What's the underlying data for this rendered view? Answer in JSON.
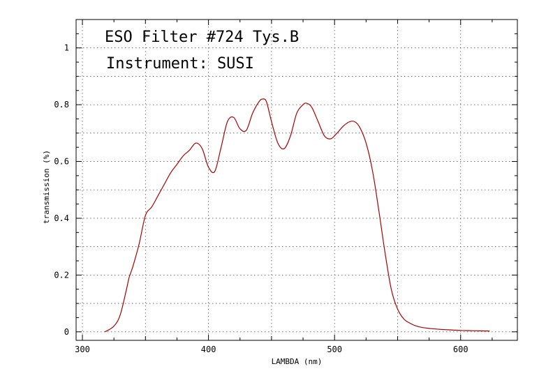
{
  "chart_data": {
    "type": "line",
    "title": "ESO Filter #724 Tys.B",
    "subtitle": "Instrument: SUSI",
    "xlabel": "LAMBDA (nm)",
    "ylabel": "transmission (%)",
    "xlim": [
      295,
      645
    ],
    "ylim": [
      -0.03,
      1.1
    ],
    "x_major_ticks": [
      300,
      400,
      500,
      600
    ],
    "x_minor_ticks": [
      350,
      450,
      550
    ],
    "y_major_ticks": [
      0,
      0.2,
      0.4,
      0.6,
      0.8,
      1
    ],
    "y_minor_ticks": [
      0.1,
      0.3,
      0.5,
      0.7,
      0.9
    ],
    "x_tick_labels": [
      "300",
      "400",
      "500",
      "600"
    ],
    "y_tick_labels": [
      "0",
      "0.2",
      "0.4",
      "0.6",
      "0.8",
      "1"
    ],
    "grid": true,
    "line_color": "#aa0000",
    "series": [
      {
        "x": [
          318,
          325,
          330,
          335,
          337,
          340,
          345,
          350,
          355,
          360,
          365,
          370,
          375,
          380,
          385,
          390,
          395,
          400,
          405,
          410,
          415,
          420,
          425,
          430,
          435,
          440,
          443,
          446,
          450,
          455,
          460,
          465,
          470,
          475,
          478,
          482,
          487,
          492,
          497,
          502,
          507,
          512,
          516,
          520,
          525,
          530,
          535,
          540,
          545,
          550,
          555,
          560,
          565,
          570,
          575,
          580,
          590,
          600,
          610,
          623
        ],
        "y": [
          0.0,
          0.02,
          0.06,
          0.15,
          0.19,
          0.23,
          0.31,
          0.41,
          0.44,
          0.48,
          0.52,
          0.56,
          0.59,
          0.62,
          0.64,
          0.665,
          0.645,
          0.58,
          0.565,
          0.65,
          0.74,
          0.755,
          0.715,
          0.71,
          0.77,
          0.81,
          0.82,
          0.81,
          0.74,
          0.665,
          0.645,
          0.69,
          0.77,
          0.8,
          0.805,
          0.79,
          0.74,
          0.69,
          0.68,
          0.7,
          0.725,
          0.74,
          0.74,
          0.72,
          0.665,
          0.57,
          0.43,
          0.28,
          0.15,
          0.08,
          0.045,
          0.03,
          0.02,
          0.015,
          0.012,
          0.01,
          0.007,
          0.005,
          0.004,
          0.003
        ]
      }
    ]
  }
}
